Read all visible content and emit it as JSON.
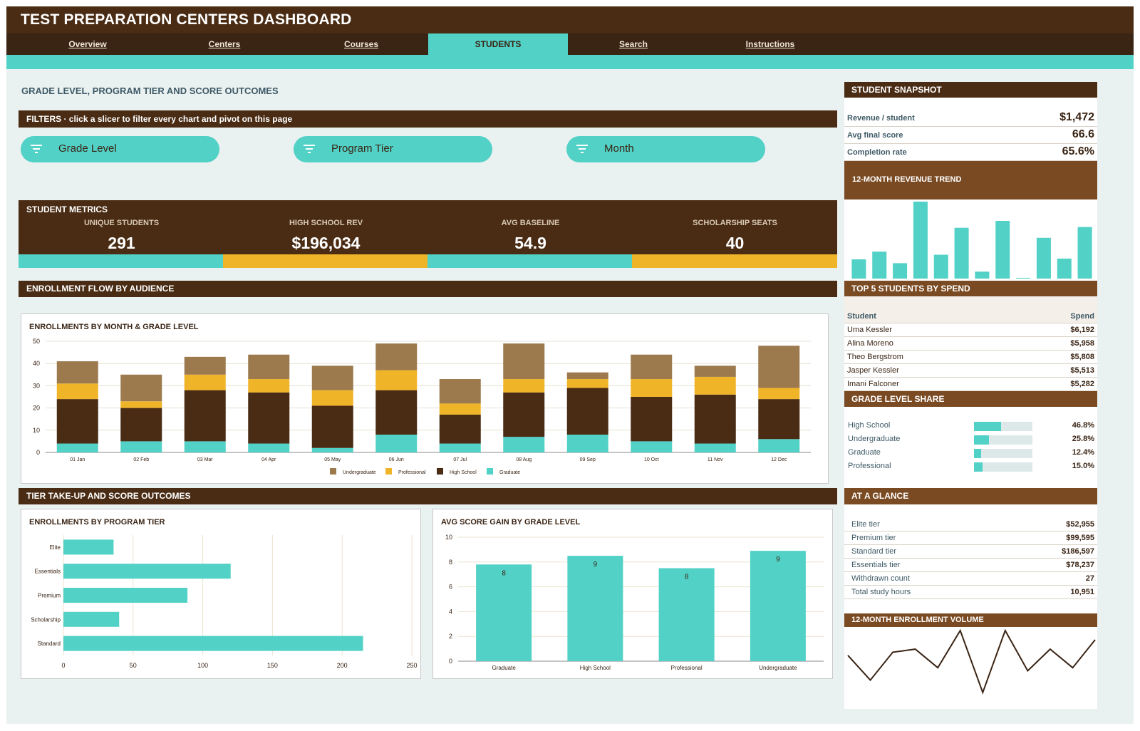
{
  "app": {
    "title": "TEST PREPARATION CENTERS DASHBOARD"
  },
  "tabs": [
    {
      "label": "Overview",
      "active": false
    },
    {
      "label": "Centers",
      "active": false
    },
    {
      "label": "Courses",
      "active": false
    },
    {
      "label": "STUDENTS",
      "active": true
    },
    {
      "label": "Search",
      "active": false
    },
    {
      "label": "Instructions",
      "active": false
    }
  ],
  "section_title": "GRADE LEVEL, PROGRAM TIER AND SCORE OUTCOMES",
  "filters": {
    "label": "FILTERS",
    "hint": "click a slicer to filter every chart and pivot on this page",
    "slicers": [
      "Grade Level",
      "Program Tier",
      "Month"
    ],
    "icon": "filter-icon"
  },
  "metrics": {
    "title": "STUDENT METRICS",
    "items": [
      {
        "label": "UNIQUE STUDENTS",
        "value": "291"
      },
      {
        "label": "HIGH SCHOOL REV",
        "value": "$196,034"
      },
      {
        "label": "AVG BASELINE",
        "value": "54.9"
      },
      {
        "label": "SCHOLARSHIP SEATS",
        "value": "40"
      }
    ]
  },
  "section2_title": "ENROLLMENT FLOW BY AUDIENCE",
  "section3_title": "TIER TAKE-UP AND SCORE OUTCOMES",
  "colors": {
    "brown_dark": "#4a2c14",
    "brown_mid": "#7a4a22",
    "teal": "#52d1c6",
    "gold": "#f0b429",
    "tan": "#9c7a4e",
    "bg": "#eaf1f1"
  },
  "chart_data": [
    {
      "id": "enroll_month",
      "type": "bar",
      "stacked": true,
      "title": "ENROLLMENTS BY MONTH & GRADE LEVEL",
      "categories": [
        "01 Jan",
        "02 Feb",
        "03 Mar",
        "04 Apr",
        "05 May",
        "06 Jun",
        "07 Jul",
        "08 Aug",
        "09 Sep",
        "10 Oct",
        "11 Nov",
        "12 Dec"
      ],
      "series": [
        {
          "name": "Graduate",
          "color": "#52d1c6",
          "values": [
            4,
            5,
            5,
            4,
            2,
            8,
            4,
            7,
            8,
            5,
            4,
            6
          ]
        },
        {
          "name": "High School",
          "color": "#4a2c14",
          "values": [
            20,
            15,
            23,
            23,
            19,
            20,
            13,
            20,
            21,
            20,
            22,
            18
          ]
        },
        {
          "name": "Professional",
          "color": "#f0b429",
          "values": [
            7,
            3,
            7,
            6,
            7,
            9,
            5,
            6,
            4,
            8,
            8,
            5
          ]
        },
        {
          "name": "Undergraduate",
          "color": "#9c7a4e",
          "values": [
            10,
            12,
            8,
            11,
            11,
            12,
            11,
            16,
            3,
            11,
            5,
            19
          ]
        }
      ],
      "ylim": [
        0,
        50
      ],
      "yticks": [
        0,
        10,
        20,
        30,
        40,
        50
      ],
      "legend": "bottom",
      "legend_order": [
        "Undergraduate",
        "Professional",
        "High School",
        "Graduate"
      ],
      "grid": true
    },
    {
      "id": "program_tier",
      "type": "bar",
      "orientation": "horizontal",
      "title": "ENROLLMENTS BY PROGRAM TIER",
      "categories": [
        "Elite",
        "Essentials",
        "Premium",
        "Scholarship",
        "Standard"
      ],
      "values": [
        36,
        120,
        89,
        40,
        215
      ],
      "xlim": [
        0,
        250
      ],
      "xticks": [
        0,
        50,
        100,
        150,
        200,
        250
      ],
      "grid": true
    },
    {
      "id": "score_gain",
      "type": "bar",
      "title": "AVG SCORE GAIN BY GRADE LEVEL",
      "categories": [
        "Graduate",
        "High School",
        "Professional",
        "Undergraduate"
      ],
      "values": [
        7.8,
        8.5,
        7.5,
        8.9
      ],
      "data_labels": [
        "8",
        "9",
        "8",
        "9"
      ],
      "ylim": [
        0,
        10
      ],
      "yticks": [
        0,
        2,
        4,
        6,
        8,
        10
      ],
      "grid": true
    },
    {
      "id": "revenue_trend",
      "type": "bar",
      "title": "12-MONTH REVENUE TREND",
      "values": [
        25,
        35,
        20,
        100,
        31,
        66,
        9,
        75,
        1,
        53,
        26,
        67
      ]
    },
    {
      "id": "enrollment_volume",
      "type": "line",
      "title": "12-MONTH ENROLLMENT VOLUME",
      "values": [
        35,
        27,
        36,
        37,
        31,
        43,
        23,
        43,
        30,
        37,
        31,
        40
      ]
    }
  ],
  "snapshot": {
    "title": "STUDENT SNAPSHOT",
    "rows": [
      {
        "label": "Revenue / student",
        "value": "$1,472"
      },
      {
        "label": "Avg final score",
        "value": "66.6"
      },
      {
        "label": "Completion rate",
        "value": "65.6%"
      }
    ]
  },
  "top_students": {
    "title": "TOP 5 STUDENTS BY SPEND",
    "col_student": "Student",
    "col_spend": "Spend",
    "rows": [
      {
        "name": "Uma Kessler",
        "spend": "$6,192"
      },
      {
        "name": "Alina Moreno",
        "spend": "$5,958"
      },
      {
        "name": "Theo Bergstrom",
        "spend": "$5,808"
      },
      {
        "name": "Jasper Kessler",
        "spend": "$5,513"
      },
      {
        "name": "Imani Falconer",
        "spend": "$5,282"
      }
    ]
  },
  "grade_share": {
    "title": "GRADE LEVEL SHARE",
    "rows": [
      {
        "label": "High School",
        "value": "46.8%",
        "fraction": 0.468
      },
      {
        "label": "Undergraduate",
        "value": "25.8%",
        "fraction": 0.258
      },
      {
        "label": "Graduate",
        "value": "12.4%",
        "fraction": 0.124
      },
      {
        "label": "Professional",
        "value": "15.0%",
        "fraction": 0.15
      }
    ]
  },
  "at_a_glance": {
    "title": "AT A GLANCE",
    "rows": [
      {
        "label": "Elite tier",
        "value": "$52,955"
      },
      {
        "label": "Premium tier",
        "value": "$99,595"
      },
      {
        "label": "Standard tier",
        "value": "$186,597"
      },
      {
        "label": "Essentials tier",
        "value": "$78,237"
      },
      {
        "label": "Withdrawn count",
        "value": "27"
      },
      {
        "label": "Total study hours",
        "value": "10,951"
      }
    ]
  }
}
